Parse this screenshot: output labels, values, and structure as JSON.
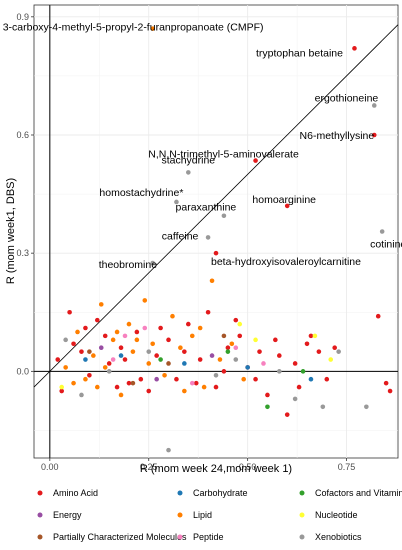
{
  "chart_data": {
    "type": "scatter",
    "xlabel": "R (mom week 24,mom week 1)",
    "ylabel": "R (mom week1, DBS)",
    "xlim": [
      -0.04,
      0.88
    ],
    "ylim": [
      -0.22,
      0.93
    ],
    "xticks": [
      0.0,
      0.25,
      0.5,
      0.75
    ],
    "xtick_labels": [
      "0.00",
      "0.25",
      "0.50",
      "0.75"
    ],
    "yticks": [
      0.0,
      0.3,
      0.6,
      0.9
    ],
    "ytick_labels": [
      "0.0",
      "0.3",
      "0.6",
      "0.9"
    ],
    "reference_lines": {
      "x": 0,
      "y": 0,
      "identity": true
    },
    "grid": true,
    "legend_position": "bottom",
    "colors": {
      "Amino Acid": "#e31a1c",
      "Carbohydrate": "#1f78b4",
      "Cofactors and Vitamins": "#33a02c",
      "Energy": "#984ea3",
      "Lipid": "#ff7f00",
      "Nucleotide": "#ffff33",
      "Partially Characterized Molecules": "#a65628",
      "Peptide": "#f781bf",
      "Xenobiotics": "#999999"
    },
    "legend": [
      [
        "Amino Acid",
        "Carbohydrate",
        "Cofactors and Vitamins"
      ],
      [
        "Energy",
        "Lipid",
        "Nucleotide"
      ],
      [
        "Partially Characterized Molecules",
        "Peptide",
        "Xenobiotics"
      ]
    ],
    "labeled_points": [
      {
        "label": "3-carboxy-4-methyl-5-propyl-2-furanpropanoate (CMPF)",
        "x": 0.26,
        "y": 0.87,
        "category": "Lipid"
      },
      {
        "label": "tryptophan betaine",
        "x": 0.77,
        "y": 0.82,
        "category": "Amino Acid"
      },
      {
        "label": "ergothioneine",
        "x": 0.82,
        "y": 0.675,
        "category": "Xenobiotics"
      },
      {
        "label": "N6-methyllysine",
        "x": 0.82,
        "y": 0.6,
        "category": "Amino Acid"
      },
      {
        "label": "N,N,N-trimethyl-5-aminovalerate",
        "x": 0.52,
        "y": 0.535,
        "category": "Amino Acid"
      },
      {
        "label": "stachydrine",
        "x": 0.35,
        "y": 0.505,
        "category": "Xenobiotics"
      },
      {
        "label": "homostachydrine*",
        "x": 0.32,
        "y": 0.43,
        "category": "Xenobiotics"
      },
      {
        "label": "homoarginine",
        "x": 0.6,
        "y": 0.42,
        "category": "Amino Acid"
      },
      {
        "label": "paraxanthine",
        "x": 0.44,
        "y": 0.395,
        "category": "Xenobiotics"
      },
      {
        "label": "caffeine",
        "x": 0.4,
        "y": 0.34,
        "category": "Xenobiotics"
      },
      {
        "label": "cotinine",
        "x": 0.84,
        "y": 0.355,
        "category": "Xenobiotics"
      },
      {
        "label": "beta-hydroxyisovaleroylcarnitine",
        "x": 0.42,
        "y": 0.3,
        "category": "Amino Acid"
      },
      {
        "label": "theobromine",
        "x": 0.26,
        "y": 0.275,
        "category": "Xenobiotics"
      }
    ],
    "points": [
      {
        "x": 0.02,
        "y": 0.03,
        "c": "Amino Acid"
      },
      {
        "x": 0.05,
        "y": 0.15,
        "c": "Amino Acid"
      },
      {
        "x": 0.08,
        "y": 0.05,
        "c": "Amino Acid"
      },
      {
        "x": 0.12,
        "y": 0.13,
        "c": "Amino Acid"
      },
      {
        "x": 0.15,
        "y": 0.02,
        "c": "Amino Acid"
      },
      {
        "x": 0.18,
        "y": 0.06,
        "c": "Amino Acid"
      },
      {
        "x": 0.2,
        "y": -0.03,
        "c": "Amino Acid"
      },
      {
        "x": 0.22,
        "y": 0.1,
        "c": "Amino Acid"
      },
      {
        "x": 0.25,
        "y": -0.05,
        "c": "Amino Acid"
      },
      {
        "x": 0.27,
        "y": 0.04,
        "c": "Amino Acid"
      },
      {
        "x": 0.3,
        "y": 0.08,
        "c": "Amino Acid"
      },
      {
        "x": 0.32,
        "y": -0.02,
        "c": "Amino Acid"
      },
      {
        "x": 0.35,
        "y": 0.12,
        "c": "Amino Acid"
      },
      {
        "x": 0.38,
        "y": 0.03,
        "c": "Amino Acid"
      },
      {
        "x": 0.4,
        "y": 0.15,
        "c": "Amino Acid"
      },
      {
        "x": 0.42,
        "y": -0.04,
        "c": "Amino Acid"
      },
      {
        "x": 0.45,
        "y": 0.06,
        "c": "Amino Acid"
      },
      {
        "x": 0.48,
        "y": 0.09,
        "c": "Amino Acid"
      },
      {
        "x": 0.5,
        "y": 0.01,
        "c": "Amino Acid"
      },
      {
        "x": 0.53,
        "y": 0.05,
        "c": "Amino Acid"
      },
      {
        "x": 0.55,
        "y": -0.06,
        "c": "Amino Acid"
      },
      {
        "x": 0.58,
        "y": 0.04,
        "c": "Amino Acid"
      },
      {
        "x": 0.6,
        "y": -0.11,
        "c": "Amino Acid"
      },
      {
        "x": 0.62,
        "y": 0.02,
        "c": "Amino Acid"
      },
      {
        "x": 0.65,
        "y": 0.07,
        "c": "Amino Acid"
      },
      {
        "x": 0.68,
        "y": 0.05,
        "c": "Amino Acid"
      },
      {
        "x": 0.7,
        "y": -0.02,
        "c": "Amino Acid"
      },
      {
        "x": 0.83,
        "y": 0.14,
        "c": "Amino Acid"
      },
      {
        "x": 0.85,
        "y": -0.03,
        "c": "Amino Acid"
      },
      {
        "x": 0.86,
        "y": -0.05,
        "c": "Amino Acid"
      },
      {
        "x": 0.03,
        "y": -0.05,
        "c": "Amino Acid"
      },
      {
        "x": 0.1,
        "y": -0.01,
        "c": "Amino Acid"
      },
      {
        "x": 0.14,
        "y": 0.09,
        "c": "Amino Acid"
      },
      {
        "x": 0.17,
        "y": -0.04,
        "c": "Amino Acid"
      },
      {
        "x": 0.28,
        "y": 0.11,
        "c": "Amino Acid"
      },
      {
        "x": 0.34,
        "y": 0.05,
        "c": "Amino Acid"
      },
      {
        "x": 0.44,
        "y": 0.0,
        "c": "Amino Acid"
      },
      {
        "x": 0.47,
        "y": 0.13,
        "c": "Amino Acid"
      },
      {
        "x": 0.57,
        "y": 0.08,
        "c": "Amino Acid"
      },
      {
        "x": 0.63,
        "y": -0.04,
        "c": "Amino Acid"
      },
      {
        "x": 0.19,
        "y": 0.03,
        "c": "Amino Acid"
      },
      {
        "x": 0.23,
        "y": -0.02,
        "c": "Amino Acid"
      },
      {
        "x": 0.37,
        "y": -0.03,
        "c": "Amino Acid"
      },
      {
        "x": 0.52,
        "y": -0.02,
        "c": "Amino Acid"
      },
      {
        "x": 0.06,
        "y": 0.07,
        "c": "Amino Acid"
      },
      {
        "x": 0.09,
        "y": 0.11,
        "c": "Amino Acid"
      },
      {
        "x": 0.66,
        "y": 0.09,
        "c": "Amino Acid"
      },
      {
        "x": 0.72,
        "y": 0.06,
        "c": "Amino Acid"
      },
      {
        "x": 0.04,
        "y": 0.01,
        "c": "Lipid"
      },
      {
        "x": 0.07,
        "y": 0.1,
        "c": "Lipid"
      },
      {
        "x": 0.09,
        "y": -0.02,
        "c": "Lipid"
      },
      {
        "x": 0.11,
        "y": 0.04,
        "c": "Lipid"
      },
      {
        "x": 0.13,
        "y": 0.17,
        "c": "Lipid"
      },
      {
        "x": 0.16,
        "y": 0.08,
        "c": "Lipid"
      },
      {
        "x": 0.18,
        "y": -0.06,
        "c": "Lipid"
      },
      {
        "x": 0.21,
        "y": 0.05,
        "c": "Lipid"
      },
      {
        "x": 0.24,
        "y": 0.18,
        "c": "Lipid"
      },
      {
        "x": 0.26,
        "y": 0.07,
        "c": "Lipid"
      },
      {
        "x": 0.29,
        "y": -0.01,
        "c": "Lipid"
      },
      {
        "x": 0.31,
        "y": 0.14,
        "c": "Lipid"
      },
      {
        "x": 0.33,
        "y": 0.06,
        "c": "Lipid"
      },
      {
        "x": 0.36,
        "y": 0.09,
        "c": "Lipid"
      },
      {
        "x": 0.39,
        "y": -0.04,
        "c": "Lipid"
      },
      {
        "x": 0.41,
        "y": 0.23,
        "c": "Lipid"
      },
      {
        "x": 0.43,
        "y": 0.03,
        "c": "Lipid"
      },
      {
        "x": 0.46,
        "y": 0.07,
        "c": "Lipid"
      },
      {
        "x": 0.49,
        "y": -0.02,
        "c": "Lipid"
      },
      {
        "x": 0.14,
        "y": 0.01,
        "c": "Lipid"
      },
      {
        "x": 0.2,
        "y": 0.12,
        "c": "Lipid"
      },
      {
        "x": 0.25,
        "y": 0.02,
        "c": "Lipid"
      },
      {
        "x": 0.12,
        "y": -0.04,
        "c": "Lipid"
      },
      {
        "x": 0.17,
        "y": 0.1,
        "c": "Lipid"
      },
      {
        "x": 0.06,
        "y": -0.03,
        "c": "Lipid"
      },
      {
        "x": 0.34,
        "y": -0.05,
        "c": "Lipid"
      },
      {
        "x": 0.38,
        "y": 0.11,
        "c": "Lipid"
      },
      {
        "x": 0.22,
        "y": 0.08,
        "c": "Lipid"
      },
      {
        "x": 0.09,
        "y": 0.03,
        "c": "Carbohydrate"
      },
      {
        "x": 0.18,
        "y": 0.04,
        "c": "Carbohydrate"
      },
      {
        "x": 0.34,
        "y": 0.02,
        "c": "Carbohydrate"
      },
      {
        "x": 0.5,
        "y": 0.01,
        "c": "Carbohydrate"
      },
      {
        "x": 0.66,
        "y": -0.02,
        "c": "Carbohydrate"
      },
      {
        "x": 0.28,
        "y": 0.03,
        "c": "Cofactors and Vitamins"
      },
      {
        "x": 0.55,
        "y": -0.09,
        "c": "Cofactors and Vitamins"
      },
      {
        "x": 0.64,
        "y": 0.0,
        "c": "Cofactors and Vitamins"
      },
      {
        "x": 0.45,
        "y": 0.05,
        "c": "Cofactors and Vitamins"
      },
      {
        "x": 0.13,
        "y": 0.06,
        "c": "Energy"
      },
      {
        "x": 0.27,
        "y": -0.02,
        "c": "Energy"
      },
      {
        "x": 0.41,
        "y": 0.04,
        "c": "Energy"
      },
      {
        "x": 0.03,
        "y": -0.04,
        "c": "Nucleotide"
      },
      {
        "x": 0.48,
        "y": 0.12,
        "c": "Nucleotide"
      },
      {
        "x": 0.67,
        "y": 0.09,
        "c": "Nucleotide"
      },
      {
        "x": 0.71,
        "y": 0.03,
        "c": "Nucleotide"
      },
      {
        "x": 0.52,
        "y": 0.08,
        "c": "Nucleotide"
      },
      {
        "x": 0.1,
        "y": 0.05,
        "c": "Partially Characterized Molecules"
      },
      {
        "x": 0.3,
        "y": 0.02,
        "c": "Partially Characterized Molecules"
      },
      {
        "x": 0.21,
        "y": -0.03,
        "c": "Partially Characterized Molecules"
      },
      {
        "x": 0.44,
        "y": 0.09,
        "c": "Partially Characterized Molecules"
      },
      {
        "x": 0.16,
        "y": 0.03,
        "c": "Peptide"
      },
      {
        "x": 0.24,
        "y": 0.11,
        "c": "Peptide"
      },
      {
        "x": 0.36,
        "y": -0.03,
        "c": "Peptide"
      },
      {
        "x": 0.47,
        "y": 0.06,
        "c": "Peptide"
      },
      {
        "x": 0.54,
        "y": 0.02,
        "c": "Peptide"
      },
      {
        "x": 0.19,
        "y": 0.09,
        "c": "Peptide"
      },
      {
        "x": 0.08,
        "y": -0.06,
        "c": "Xenobiotics"
      },
      {
        "x": 0.15,
        "y": 0.0,
        "c": "Xenobiotics"
      },
      {
        "x": 0.3,
        "y": -0.2,
        "c": "Xenobiotics"
      },
      {
        "x": 0.42,
        "y": -0.01,
        "c": "Xenobiotics"
      },
      {
        "x": 0.62,
        "y": -0.07,
        "c": "Xenobiotics"
      },
      {
        "x": 0.69,
        "y": -0.09,
        "c": "Xenobiotics"
      },
      {
        "x": 0.8,
        "y": -0.09,
        "c": "Xenobiotics"
      },
      {
        "x": 0.73,
        "y": 0.05,
        "c": "Xenobiotics"
      },
      {
        "x": 0.58,
        "y": 0.0,
        "c": "Xenobiotics"
      },
      {
        "x": 0.47,
        "y": 0.03,
        "c": "Xenobiotics"
      },
      {
        "x": 0.04,
        "y": 0.08,
        "c": "Xenobiotics"
      },
      {
        "x": 0.25,
        "y": 0.05,
        "c": "Xenobiotics"
      }
    ]
  }
}
